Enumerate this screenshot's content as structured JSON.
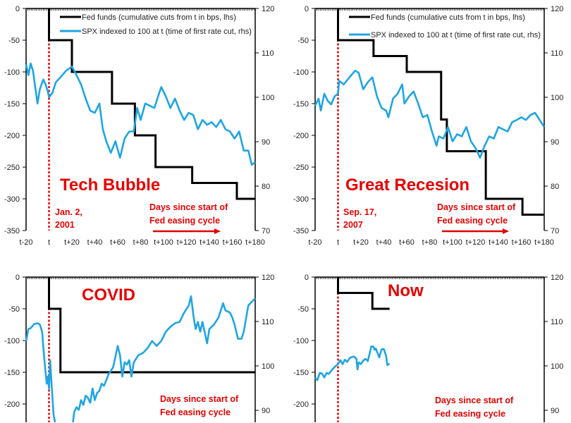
{
  "colors": {
    "fed": "#000000",
    "spx": "#1ea5e3",
    "annotation": "#e60000"
  },
  "chart_data": [
    {
      "type": "line",
      "title": "Tech Bubble",
      "date_label": [
        "Jan. 2,",
        "2001"
      ],
      "xaxis_note": [
        "Days since start of",
        "Fed easing cycle"
      ],
      "legend": [
        "Fed funds (cumulative cuts from t in bps, lhs)",
        "SPX indexed to 100 at t (time of first rate cut, rhs)"
      ],
      "xlim": [
        -20,
        180
      ],
      "ylim_left": [
        -350,
        0
      ],
      "ylim_right": [
        70,
        120
      ],
      "x_ticks": [
        "t-20",
        "t",
        "t+20",
        "t+40",
        "t+60",
        "t+80",
        "t+100",
        "t+120",
        "t+140",
        "t+160",
        "t+180"
      ],
      "left_ticks": [
        "0",
        "-50",
        "-100",
        "-150",
        "-200",
        "-250",
        "-300",
        "-350"
      ],
      "right_ticks": [
        "120",
        "110",
        "100",
        "90",
        "80",
        "70"
      ],
      "series": [
        {
          "name": "Fed funds",
          "axis": "left",
          "steps": [
            [
              0,
              -50
            ],
            [
              20,
              -100
            ],
            [
              55,
              -150
            ],
            [
              75,
              -200
            ],
            [
              93,
              -250
            ],
            [
              125,
              -275
            ],
            [
              164,
              -300
            ],
            [
              180,
              -300
            ]
          ]
        },
        {
          "name": "SPX",
          "axis": "right",
          "x": [
            -20,
            -18,
            -16,
            -14,
            -12,
            -10,
            -8,
            -5,
            -3,
            -1,
            0,
            3,
            6,
            10,
            15,
            20,
            23,
            28,
            32,
            36,
            40,
            44,
            47,
            50,
            54,
            58,
            62,
            66,
            70,
            74,
            77,
            80,
            84,
            88,
            92,
            96,
            98,
            102,
            106,
            110,
            114,
            118,
            122,
            126,
            130,
            134,
            138,
            142,
            146,
            150,
            154,
            158,
            162,
            166,
            170,
            174,
            177,
            180
          ],
          "y": [
            107.4,
            105,
            107.6,
            106,
            102.3,
            98.6,
            101.8,
            104,
            102.9,
            101.3,
            100,
            101,
            103.4,
            104.5,
            106,
            106.9,
            105.5,
            102.9,
            99.7,
            97,
            96.5,
            98.6,
            92.8,
            90.1,
            87.5,
            90.1,
            86.4,
            90.7,
            92.3,
            92.3,
            97.6,
            94.9,
            98.6,
            98.1,
            97.6,
            100.8,
            102.3,
            100.2,
            97.6,
            99.7,
            97,
            94.9,
            96.5,
            96,
            92.8,
            94.9,
            93.8,
            94.4,
            93.3,
            94.9,
            92.8,
            92.3,
            90.7,
            92.3,
            88,
            88,
            84.8,
            85.4
          ]
        }
      ]
    },
    {
      "type": "line",
      "title": "Great Recesion",
      "date_label": [
        "Sep. 17,",
        "2007"
      ],
      "xaxis_note": [
        "Days since start of",
        "Fed easing cycle"
      ],
      "legend": [
        "Fed funds (cumulative cuts from t in bps, lhs)",
        "SPX indexed to 100 at t (time of first rate cut, rhs)"
      ],
      "xlim": [
        -20,
        180
      ],
      "ylim_left": [
        -350,
        0
      ],
      "ylim_right": [
        70,
        120
      ],
      "x_ticks": [
        "t-20",
        "t",
        "t+20",
        "t+40",
        "t+60",
        "t+80",
        "t+100",
        "t+120",
        "t+140",
        "t+160",
        "t+180"
      ],
      "left_ticks": [
        "0",
        "-50",
        "-100",
        "-150",
        "-200",
        "-250",
        "-300",
        "-350"
      ],
      "right_ticks": [
        "120",
        "110",
        "100",
        "90",
        "80",
        "70"
      ],
      "series": [
        {
          "name": "Fed funds",
          "axis": "left",
          "steps": [
            [
              0,
              -50
            ],
            [
              31,
              -75
            ],
            [
              60,
              -100
            ],
            [
              90,
              -175
            ],
            [
              95,
              -225
            ],
            [
              129,
              -300
            ],
            [
              161,
              -325
            ],
            [
              180,
              -325
            ]
          ]
        },
        {
          "name": "SPX",
          "axis": "right",
          "x": [
            -20,
            -17,
            -15,
            -12,
            -9,
            -6,
            -3,
            0,
            1,
            5,
            10,
            15,
            18,
            22,
            26,
            30,
            34,
            38,
            42,
            44,
            48,
            52,
            56,
            58,
            62,
            66,
            70,
            74,
            78,
            82,
            86,
            88,
            92,
            96,
            100,
            104,
            108,
            112,
            116,
            120,
            124,
            128,
            132,
            136,
            140,
            144,
            148,
            152,
            156,
            160,
            164,
            168,
            172,
            176,
            180
          ],
          "y": [
            98.1,
            99.7,
            97,
            100.8,
            99.2,
            98.4,
            100.2,
            100.8,
            103.7,
            102.9,
            104.5,
            106,
            105.5,
            101.8,
            103.4,
            104.5,
            100.2,
            97.6,
            97,
            95.5,
            99.7,
            100.8,
            102.9,
            98.6,
            100.2,
            101.3,
            98.6,
            95.5,
            96,
            92.3,
            89.1,
            91.2,
            90.7,
            93.3,
            90.1,
            91.7,
            91.2,
            93.3,
            90.1,
            88.6,
            86.4,
            89.1,
            91.2,
            90.7,
            93.3,
            92.8,
            92.3,
            94.4,
            94.9,
            95.5,
            94.9,
            96,
            96.5,
            94.9,
            93.3
          ]
        }
      ]
    },
    {
      "type": "line",
      "title": "COVID",
      "xaxis_note": [
        "Days since start of",
        "Fed easing cycle"
      ],
      "xlim": [
        -20,
        180
      ],
      "ylim_left": [
        -350,
        0
      ],
      "ylim_right": [
        70,
        120
      ],
      "left_ticks": [
        "0",
        "-50",
        "-100",
        "-150",
        "-200"
      ],
      "right_ticks": [
        "120",
        "110",
        "100",
        "90"
      ],
      "series": [
        {
          "name": "Fed funds",
          "axis": "left",
          "steps": [
            [
              0,
              -50
            ],
            [
              10,
              -150
            ],
            [
              180,
              -150
            ]
          ]
        },
        {
          "name": "SPX",
          "axis": "right",
          "x": [
            -20,
            -18,
            -16,
            -13,
            -10,
            -8,
            -6,
            -4,
            -2,
            -1,
            0,
            1,
            2,
            4,
            6,
            8,
            12,
            16,
            20,
            22,
            24,
            26,
            28,
            30,
            32,
            34,
            36,
            38,
            40,
            42,
            44,
            46,
            48,
            52,
            56,
            60,
            62,
            64,
            66,
            68,
            70,
            72,
            74,
            78,
            82,
            86,
            90,
            94,
            98,
            102,
            106,
            110,
            114,
            118,
            122,
            124,
            126,
            128,
            130,
            132,
            134,
            138,
            140,
            144,
            148,
            152,
            154,
            158,
            160,
            162,
            165,
            168,
            170,
            174,
            178,
            180
          ],
          "y": [
            105.6,
            108.3,
            108.5,
            109.4,
            109.6,
            109.3,
            107.7,
            101.3,
            96,
            97.6,
            94.9,
            101.3,
            97,
            89,
            86.4,
            83.2,
            81,
            82,
            85.3,
            89.6,
            90.7,
            90.1,
            92.3,
            91.2,
            93.3,
            92.8,
            91.7,
            94.9,
            92.3,
            93.9,
            94.4,
            96,
            95.5,
            98.1,
            99.7,
            104.5,
            102.4,
            97.6,
            100.8,
            100.3,
            101.3,
            97.6,
            100.8,
            102.4,
            102.9,
            104,
            105.6,
            104.5,
            105.6,
            107.7,
            108.8,
            109.6,
            109.9,
            112,
            113.6,
            115.7,
            111.5,
            108.3,
            109.9,
            107.7,
            109.9,
            105.1,
            108.3,
            109.3,
            110.9,
            114.1,
            112.5,
            112,
            110.9,
            109.3,
            106.1,
            106.1,
            107.7,
            113.6,
            114.7,
            115.2
          ]
        }
      ]
    },
    {
      "type": "line",
      "title": "Now",
      "xaxis_note": [
        "Days since start of",
        "Fed easing cycle"
      ],
      "xlim": [
        -20,
        180
      ],
      "ylim_left": [
        -350,
        0
      ],
      "ylim_right": [
        70,
        120
      ],
      "left_ticks": [
        "0",
        "-50",
        "-100",
        "-150",
        "-200"
      ],
      "right_ticks": [
        "120",
        "110",
        "100",
        "90"
      ],
      "series": [
        {
          "name": "Fed funds",
          "axis": "left",
          "steps": [
            [
              0,
              -25
            ],
            [
              30,
              -50
            ],
            [
              45,
              -50
            ]
          ]
        },
        {
          "name": "SPX",
          "axis": "right",
          "x": [
            -20,
            -18,
            -16,
            -14,
            -12,
            -10,
            -8,
            -5,
            -2,
            0,
            2,
            4,
            6,
            8,
            10,
            12,
            14,
            16,
            17,
            18,
            20,
            22,
            24,
            26,
            28,
            29,
            31,
            32,
            33,
            35,
            36,
            38,
            40,
            42,
            43,
            45
          ],
          "y": [
            97.3,
            96.8,
            98.4,
            98.3,
            97.4,
            98.4,
            98.2,
            99.2,
            100,
            100.4,
            101.3,
            100.4,
            101.4,
            100.9,
            101.7,
            102,
            102.1,
            101.6,
            99.2,
            100.8,
            100.4,
            101.2,
            101.6,
            101.1,
            103.2,
            104.4,
            104.3,
            103.6,
            103.9,
            102.6,
            101.9,
            103.7,
            103.8,
            102.2,
            100.2,
            100.5
          ]
        }
      ]
    }
  ]
}
